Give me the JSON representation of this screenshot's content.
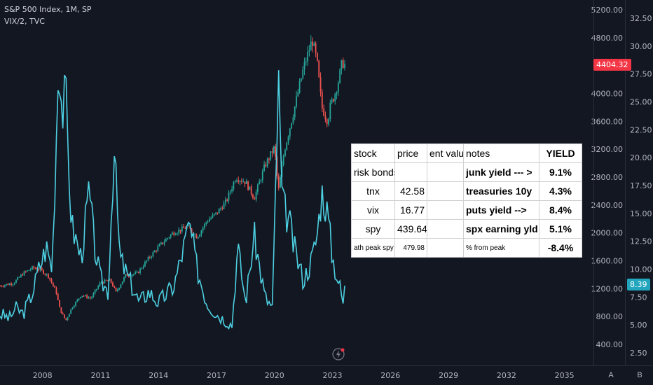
{
  "legend": {
    "main": "S&P 500 Index, 1M, SP",
    "overlay": "VIX/2, TVC"
  },
  "colors": {
    "background": "#131722",
    "up": "#26a69a",
    "down": "#ef5350",
    "vix_line": "#4dd0e1",
    "price_badge": "#f23645",
    "vix_badge": "#22a6bd"
  },
  "chart_data": {
    "type": "candlestick",
    "title": "S&P 500 Index, 1M, SP",
    "x_ticks": [
      "2008",
      "2011",
      "2014",
      "2017",
      "2020",
      "2023",
      "2026",
      "2029",
      "2032",
      "2035"
    ],
    "left_axis_ticks": [
      "5200.00",
      "4800.00",
      "4000.00",
      "3600.00",
      "3200.00",
      "2800.00",
      "2400.00",
      "2000.00",
      "1600.00",
      "1200.00",
      "800.00",
      "400.00"
    ],
    "right_axis_ticks": [
      "32.50",
      "30.00",
      "27.50",
      "25.00",
      "22.50",
      "20.00",
      "17.50",
      "15.00",
      "12.50",
      "10.00",
      "7.50",
      "5.00",
      "2.50"
    ],
    "ylim_left": [
      400,
      5200
    ],
    "ylim_right": [
      2.5,
      32.5
    ],
    "xlim": [
      2005.8,
      2036.5
    ],
    "last_price": "4404.32",
    "last_vix": "8.39",
    "spx_monthly_approx": [
      [
        2005.8,
        1240
      ],
      [
        2006.5,
        1280
      ],
      [
        2007.0,
        1420
      ],
      [
        2007.5,
        1500
      ],
      [
        2007.9,
        1470
      ],
      [
        2008.3,
        1380
      ],
      [
        2008.7,
        1160
      ],
      [
        2008.9,
        900
      ],
      [
        2009.2,
        740
      ],
      [
        2009.5,
        920
      ],
      [
        2010.0,
        1110
      ],
      [
        2010.5,
        1060
      ],
      [
        2011.0,
        1290
      ],
      [
        2011.5,
        1320
      ],
      [
        2011.8,
        1150
      ],
      [
        2012.3,
        1390
      ],
      [
        2012.9,
        1420
      ],
      [
        2013.5,
        1640
      ],
      [
        2014.0,
        1800
      ],
      [
        2014.7,
        1990
      ],
      [
        2015.5,
        2090
      ],
      [
        2016.0,
        1940
      ],
      [
        2016.5,
        2170
      ],
      [
        2017.0,
        2280
      ],
      [
        2017.5,
        2450
      ],
      [
        2018.0,
        2800
      ],
      [
        2018.5,
        2730
      ],
      [
        2018.95,
        2500
      ],
      [
        2019.5,
        2960
      ],
      [
        2020.0,
        3230
      ],
      [
        2020.2,
        2590
      ],
      [
        2020.5,
        3170
      ],
      [
        2021.0,
        3750
      ],
      [
        2021.5,
        4360
      ],
      [
        2021.95,
        4770
      ],
      [
        2022.2,
        4450
      ],
      [
        2022.45,
        3800
      ],
      [
        2022.75,
        3600
      ],
      [
        2022.9,
        3840
      ],
      [
        2023.1,
        3970
      ],
      [
        2023.3,
        4170
      ],
      [
        2023.5,
        4450
      ],
      [
        2023.65,
        4404
      ]
    ],
    "vix_half_approx": [
      [
        2005.8,
        6.0
      ],
      [
        2006.3,
        5.6
      ],
      [
        2006.6,
        6.5
      ],
      [
        2007.0,
        6.0
      ],
      [
        2007.5,
        8.0
      ],
      [
        2007.8,
        10.0
      ],
      [
        2008.2,
        12.0
      ],
      [
        2008.5,
        10.0
      ],
      [
        2008.85,
        30.0
      ],
      [
        2009.0,
        24.0
      ],
      [
        2009.2,
        25.5
      ],
      [
        2009.5,
        14.0
      ],
      [
        2010.0,
        11.0
      ],
      [
        2010.4,
        17.0
      ],
      [
        2010.7,
        12.0
      ],
      [
        2011.0,
        9.0
      ],
      [
        2011.4,
        8.0
      ],
      [
        2011.7,
        21.0
      ],
      [
        2012.0,
        11.0
      ],
      [
        2012.5,
        9.0
      ],
      [
        2013.0,
        7.0
      ],
      [
        2013.5,
        8.0
      ],
      [
        2014.0,
        7.0
      ],
      [
        2014.8,
        8.5
      ],
      [
        2015.6,
        14.0
      ],
      [
        2016.0,
        10.0
      ],
      [
        2016.5,
        7.0
      ],
      [
        2017.0,
        6.0
      ],
      [
        2017.8,
        5.0
      ],
      [
        2018.1,
        12.0
      ],
      [
        2018.5,
        7.0
      ],
      [
        2018.95,
        13.0
      ],
      [
        2019.5,
        7.5
      ],
      [
        2019.9,
        6.5
      ],
      [
        2020.2,
        27.0
      ],
      [
        2020.4,
        16.0
      ],
      [
        2020.8,
        14.0
      ],
      [
        2021.0,
        12.0
      ],
      [
        2021.5,
        9.0
      ],
      [
        2021.95,
        11.0
      ],
      [
        2022.2,
        13.0
      ],
      [
        2022.45,
        17.0
      ],
      [
        2022.75,
        15.0
      ],
      [
        2023.0,
        11.0
      ],
      [
        2023.3,
        9.0
      ],
      [
        2023.55,
        7.0
      ],
      [
        2023.65,
        8.39
      ]
    ]
  },
  "table": {
    "headers": [
      "stock",
      "price",
      "ent value",
      "notes",
      "YIELD"
    ],
    "rows": [
      {
        "stock": "risk bonds",
        "price": "",
        "ent": "",
        "notes": "junk yield --- >",
        "yield": "9.1%"
      },
      {
        "stock": "tnx",
        "price": "42.58",
        "ent": "",
        "notes": "treasuries 10y",
        "yield": "4.3%"
      },
      {
        "stock": "vix",
        "price": "16.77",
        "ent": "",
        "notes": "puts yield -->",
        "yield": "8.4%"
      },
      {
        "stock": "spy",
        "price": "439.64",
        "ent": "",
        "notes": "spx earning yld",
        "yield": "5.1%"
      },
      {
        "stock": "ath peak spy",
        "price": "479.98",
        "ent": "",
        "notes": "% from peak",
        "yield": "-8.4%"
      }
    ]
  },
  "scale_buttons": {
    "a": "A",
    "b": "B"
  }
}
